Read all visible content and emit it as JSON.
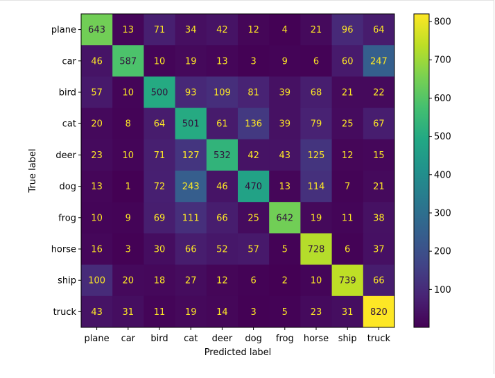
{
  "chart_data": {
    "type": "heatmap",
    "title": "",
    "xlabel": "Predicted label",
    "ylabel": "True label",
    "x_categories": [
      "plane",
      "car",
      "bird",
      "cat",
      "deer",
      "dog",
      "frog",
      "horse",
      "ship",
      "truck"
    ],
    "y_categories": [
      "plane",
      "car",
      "bird",
      "cat",
      "deer",
      "dog",
      "frog",
      "horse",
      "ship",
      "truck"
    ],
    "values": [
      [
        643,
        13,
        71,
        34,
        42,
        12,
        4,
        21,
        96,
        64
      ],
      [
        46,
        587,
        10,
        19,
        13,
        3,
        9,
        6,
        60,
        247
      ],
      [
        57,
        10,
        500,
        93,
        109,
        81,
        39,
        68,
        21,
        22
      ],
      [
        20,
        8,
        64,
        501,
        61,
        136,
        39,
        79,
        25,
        67
      ],
      [
        23,
        10,
        71,
        127,
        532,
        42,
        43,
        125,
        12,
        15
      ],
      [
        13,
        1,
        72,
        243,
        46,
        470,
        13,
        114,
        7,
        21
      ],
      [
        10,
        9,
        69,
        111,
        66,
        25,
        642,
        19,
        11,
        38
      ],
      [
        16,
        3,
        30,
        66,
        52,
        57,
        5,
        728,
        6,
        37
      ],
      [
        100,
        20,
        18,
        27,
        12,
        6,
        2,
        10,
        739,
        66
      ],
      [
        43,
        31,
        11,
        19,
        14,
        3,
        5,
        23,
        31,
        820
      ]
    ],
    "colormap": "viridis",
    "colorbar": {
      "range": [
        1,
        820
      ],
      "ticks": [
        100,
        200,
        300,
        400,
        500,
        600,
        700,
        800
      ]
    },
    "grid": false,
    "legend": "none"
  }
}
